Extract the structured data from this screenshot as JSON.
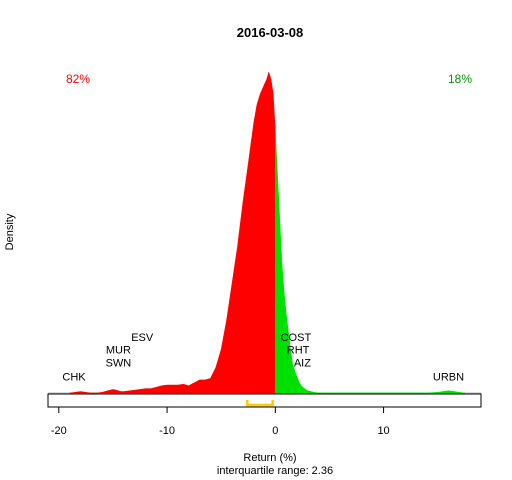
{
  "chart_data": {
    "type": "area",
    "title": "2016-03-08",
    "xlabel": "Return (%)",
    "ylabel": "Density",
    "subtitle": "interquartile range: 2.36",
    "xlim": [
      -21,
      19
    ],
    "ylim": [
      0,
      0.45
    ],
    "x_ticks": [
      -20,
      -10,
      0,
      10
    ],
    "x_tick_labels": [
      "-20",
      "-10",
      "0",
      "10"
    ],
    "split_at": 0,
    "negative_color": "#ff0000",
    "positive_color": "#00e000",
    "left_share": "82%",
    "right_share": "18%",
    "iqr_marker": {
      "from": -2.6,
      "to": -0.24,
      "color": "#ffcc00"
    },
    "density": {
      "x": [
        -19,
        -18.5,
        -18,
        -17.5,
        -17,
        -16.5,
        -16,
        -15.5,
        -15,
        -14.7,
        -14.3,
        -14,
        -13.5,
        -13,
        -12.5,
        -12,
        -11.5,
        -11,
        -10.5,
        -10,
        -9.5,
        -9,
        -8.5,
        -8,
        -7.5,
        -7,
        -6.5,
        -6,
        -5.5,
        -5,
        -4.5,
        -4,
        -3.5,
        -3,
        -2.5,
        -2,
        -1.7,
        -1.4,
        -1.1,
        -0.8,
        -0.6,
        -0.4,
        -0.2,
        0,
        0.2,
        0.4,
        0.6,
        0.8,
        1,
        1.2,
        1.4,
        1.6,
        1.8,
        2,
        2.2,
        2.4,
        2.6,
        2.8,
        3,
        3.3,
        3.6,
        4,
        5,
        6,
        7,
        8,
        9,
        10,
        11,
        12,
        13,
        14,
        15,
        15.5,
        16,
        16.5,
        17,
        17.5
      ],
      "y": [
        0,
        0.001,
        0.002,
        0.001,
        0,
        0,
        0.001,
        0.003,
        0.005,
        0.004,
        0.002,
        0.002,
        0.003,
        0.004,
        0.005,
        0.006,
        0.006,
        0.008,
        0.01,
        0.011,
        0.011,
        0.011,
        0.012,
        0.01,
        0.014,
        0.018,
        0.018,
        0.02,
        0.035,
        0.06,
        0.1,
        0.15,
        0.2,
        0.26,
        0.315,
        0.37,
        0.395,
        0.41,
        0.42,
        0.43,
        0.44,
        0.43,
        0.41,
        0.36,
        0.3,
        0.24,
        0.18,
        0.14,
        0.11,
        0.085,
        0.06,
        0.04,
        0.03,
        0.022,
        0.015,
        0.01,
        0.007,
        0.005,
        0.003,
        0.002,
        0.001,
        0,
        0,
        0,
        0,
        0,
        0,
        0,
        0,
        0,
        0,
        0,
        0.001,
        0.002,
        0.003,
        0.002,
        0.001,
        0
      ]
    },
    "stock_labels": [
      {
        "text": "CHK",
        "x": -18.6,
        "y": 0.017
      },
      {
        "text": "SWN",
        "x": -14.5,
        "y": 0.036
      },
      {
        "text": "MUR",
        "x": -14.5,
        "y": 0.054
      },
      {
        "text": "ESV",
        "x": -12.3,
        "y": 0.071
      },
      {
        "text": "COST",
        "x": 1.9,
        "y": 0.071
      },
      {
        "text": "RHT",
        "x": 2.1,
        "y": 0.054
      },
      {
        "text": "AIZ",
        "x": 2.5,
        "y": 0.036
      },
      {
        "text": "URBN",
        "x": 16.0,
        "y": 0.017
      }
    ]
  }
}
